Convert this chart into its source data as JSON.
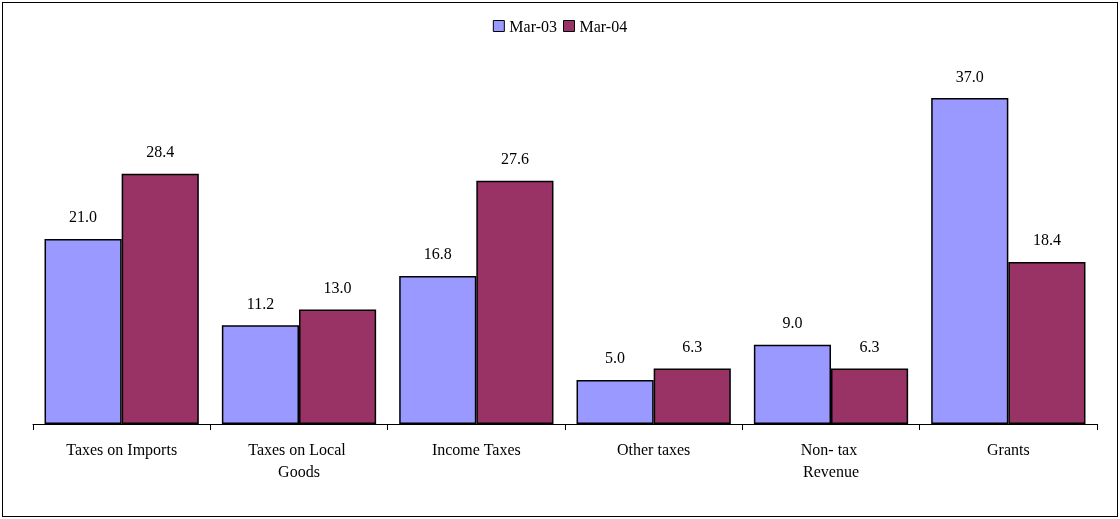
{
  "chart_data": {
    "type": "bar",
    "categories": [
      "Taxes on Imports",
      "Taxes on Local Goods",
      "Income Taxes",
      "Other taxes",
      "Non- tax Revenue",
      "Grants"
    ],
    "series": [
      {
        "name": "Mar-03",
        "color": "#9999ff",
        "values": [
          21.0,
          11.2,
          16.8,
          5.0,
          9.0,
          37.0
        ],
        "value_labels": [
          "21.0",
          "11.2",
          "16.8",
          "5.0",
          "9.0",
          "37.0"
        ]
      },
      {
        "name": "Mar-04",
        "color": "#993366",
        "values": [
          28.4,
          13.0,
          27.6,
          6.3,
          6.3,
          18.4
        ],
        "value_labels": [
          "28.4",
          "13.0",
          "27.6",
          "6.3",
          "6.3",
          "18.4"
        ]
      }
    ],
    "legend": "top",
    "grid": false
  }
}
